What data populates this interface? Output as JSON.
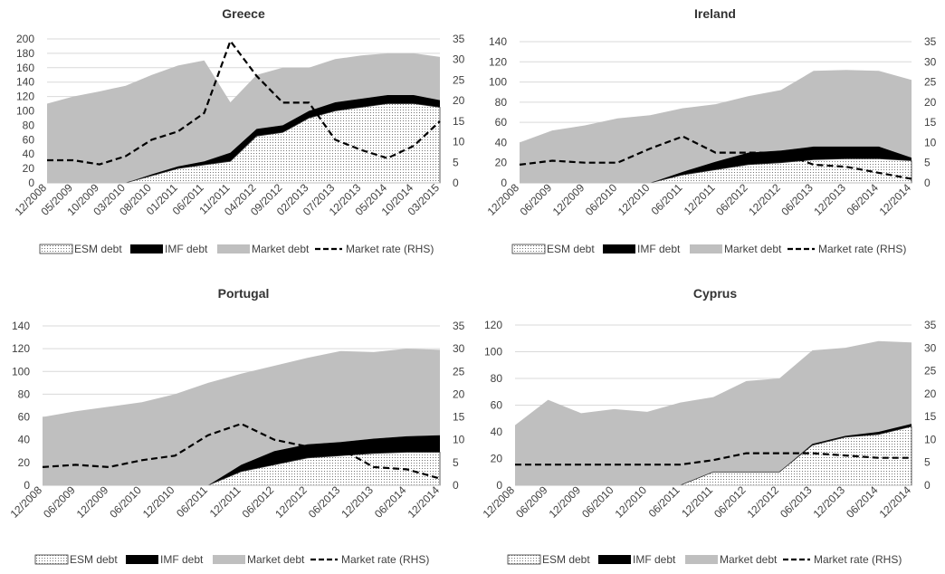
{
  "colors": {
    "market": "#bfbfbf",
    "imf": "#000000",
    "esm_fill": "#ffffff",
    "esm_dots": "#555555",
    "rate": "#000000",
    "axis_text": "#404040",
    "title": "#333333",
    "grid": "#d9d9d9"
  },
  "legend": [
    "ESM debt",
    "IMF debt",
    "Market debt",
    "Market rate (RHS)"
  ],
  "chart_data": [
    {
      "type": "area",
      "title": "Greece",
      "categories": [
        "12/2008",
        "05/2009",
        "10/2009",
        "03/2010",
        "08/2010",
        "01/2011",
        "06/2011",
        "11/2011",
        "04/2012",
        "09/2012",
        "02/2013",
        "07/2013",
        "12/2013",
        "05/2014",
        "10/2014",
        "03/2015"
      ],
      "ylim": [
        0,
        200
      ],
      "yticks": [
        0,
        20,
        40,
        60,
        80,
        100,
        120,
        140,
        160,
        180,
        200
      ],
      "y2lim": [
        0,
        35
      ],
      "y2ticks": [
        0,
        5,
        10,
        15,
        20,
        25,
        30,
        35
      ],
      "series": [
        {
          "name": "ESM debt",
          "values": [
            0,
            0,
            0,
            0,
            10,
            20,
            25,
            30,
            65,
            70,
            90,
            100,
            105,
            110,
            110,
            105
          ]
        },
        {
          "name": "IMF debt",
          "values": [
            0,
            0,
            0,
            0,
            2,
            3,
            5,
            12,
            10,
            10,
            10,
            12,
            12,
            12,
            12,
            10
          ]
        },
        {
          "name": "Market debt",
          "values": [
            110,
            120,
            127,
            135,
            138,
            140,
            140,
            70,
            75,
            80,
            60,
            60,
            60,
            58,
            58,
            60
          ]
        },
        {
          "name": "Market rate (RHS)",
          "values": [
            5.5,
            5.5,
            4.5,
            6.5,
            10.5,
            12.5,
            17,
            34.5,
            26,
            19.5,
            19.5,
            10.5,
            8,
            6,
            9,
            15
          ]
        }
      ]
    },
    {
      "type": "area",
      "title": "Ireland",
      "categories": [
        "12/2008",
        "06/2009",
        "12/2009",
        "06/2010",
        "12/2010",
        "06/2011",
        "12/2011",
        "06/2012",
        "12/2012",
        "06/2013",
        "12/2013",
        "06/2014",
        "12/2014"
      ],
      "ylim": [
        0,
        140
      ],
      "yticks": [
        0,
        20,
        40,
        60,
        80,
        100,
        120,
        140
      ],
      "y2lim": [
        0,
        35
      ],
      "y2ticks": [
        0,
        5,
        10,
        15,
        20,
        25,
        30,
        35
      ],
      "series": [
        {
          "name": "ESM debt",
          "values": [
            0,
            0,
            0,
            0,
            0,
            8,
            13,
            18,
            20,
            23,
            24,
            24,
            22
          ]
        },
        {
          "name": "IMF debt",
          "values": [
            0,
            0,
            0,
            0,
            0,
            3,
            8,
            12,
            12,
            13,
            12,
            12,
            3
          ]
        },
        {
          "name": "Market debt",
          "values": [
            40,
            52,
            57,
            64,
            67,
            63,
            57,
            56,
            60,
            75,
            76,
            75,
            77
          ]
        },
        {
          "name": "Market rate (RHS)",
          "values": [
            4.5,
            5.5,
            5,
            5,
            8.5,
            11.5,
            7.5,
            7.5,
            7.5,
            4.5,
            4,
            2.5,
            1
          ]
        }
      ]
    },
    {
      "type": "area",
      "title": "Portugal",
      "categories": [
        "12/2008",
        "06/2009",
        "12/2009",
        "06/2010",
        "12/2010",
        "06/2011",
        "12/2011",
        "06/2012",
        "12/2012",
        "06/2013",
        "12/2013",
        "06/2014",
        "12/2014"
      ],
      "ylim": [
        0,
        140
      ],
      "yticks": [
        0,
        20,
        40,
        60,
        80,
        100,
        120,
        140
      ],
      "y2lim": [
        0,
        35
      ],
      "y2ticks": [
        0,
        5,
        10,
        15,
        20,
        25,
        30,
        35
      ],
      "series": [
        {
          "name": "ESM debt",
          "values": [
            0,
            0,
            0,
            0,
            0,
            0,
            12,
            18,
            24,
            26,
            28,
            29,
            29
          ]
        },
        {
          "name": "IMF debt",
          "values": [
            0,
            0,
            0,
            0,
            0,
            0,
            6,
            12,
            12,
            12,
            13,
            14,
            15
          ]
        },
        {
          "name": "Market debt",
          "values": [
            60,
            65,
            69,
            73,
            80,
            90,
            80,
            75,
            76,
            80,
            76,
            77,
            75
          ]
        },
        {
          "name": "Market rate (RHS)",
          "values": [
            4,
            4.5,
            4,
            5.5,
            6.5,
            11,
            13.5,
            10,
            8.5,
            8,
            4,
            3.5,
            1.5
          ]
        }
      ]
    },
    {
      "type": "area",
      "title": "Cyprus",
      "categories": [
        "12/2008",
        "06/2009",
        "12/2009",
        "06/2010",
        "12/2010",
        "06/2011",
        "12/2011",
        "06/2012",
        "12/2012",
        "06/2013",
        "12/2013",
        "06/2014",
        "12/2014"
      ],
      "ylim": [
        0,
        120
      ],
      "yticks": [
        0,
        20,
        40,
        60,
        80,
        100,
        120
      ],
      "y2lim": [
        0,
        35
      ],
      "y2ticks": [
        0,
        5,
        10,
        15,
        20,
        25,
        30,
        35
      ],
      "series": [
        {
          "name": "ESM debt",
          "values": [
            0,
            0,
            0,
            0,
            0,
            0,
            10,
            10,
            10,
            30,
            36,
            38,
            44
          ]
        },
        {
          "name": "IMF debt",
          "values": [
            0,
            0,
            0,
            0,
            0,
            0,
            0,
            0,
            0,
            1,
            1,
            2,
            2
          ]
        },
        {
          "name": "Market debt",
          "values": [
            45,
            64,
            54,
            57,
            55,
            62,
            56,
            68,
            70,
            70,
            66,
            68,
            61
          ]
        },
        {
          "name": "Market rate (RHS)",
          "values": [
            4.5,
            4.5,
            4.5,
            4.5,
            4.5,
            4.5,
            5.5,
            7,
            7,
            7,
            6.5,
            6,
            6
          ]
        }
      ]
    }
  ]
}
